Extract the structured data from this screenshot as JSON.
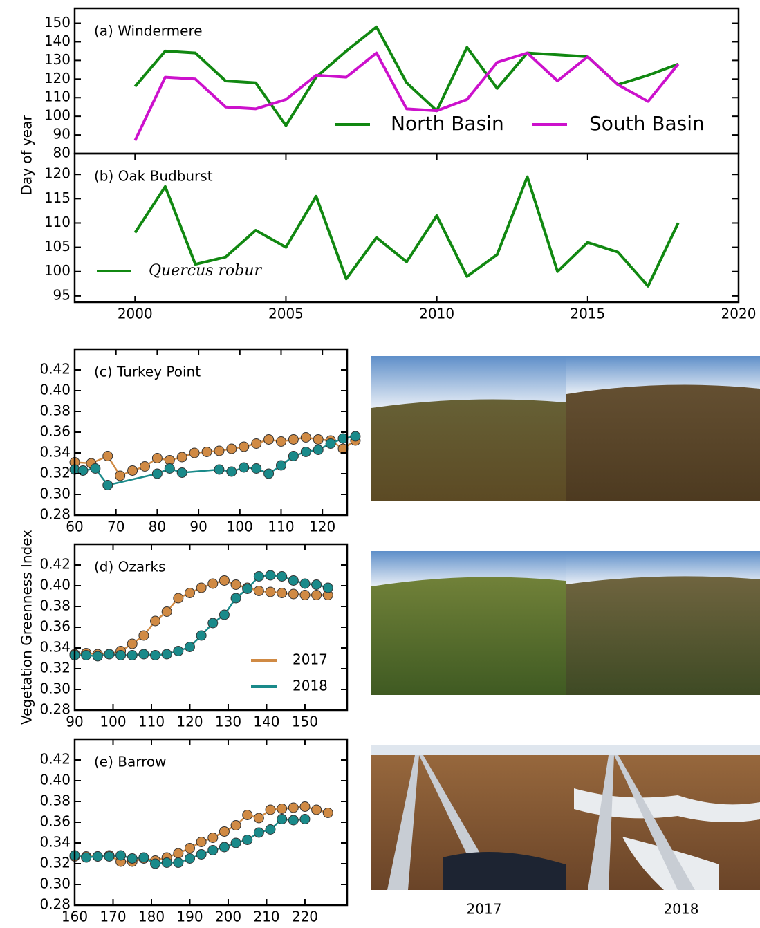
{
  "chart_data": [
    {
      "type": "line",
      "title": "(a) Windermere",
      "ylabel": "Day of year",
      "x": [
        2000,
        2001,
        2002,
        2003,
        2004,
        2005,
        2006,
        2007,
        2008,
        2009,
        2010,
        2011,
        2012,
        2013,
        2014,
        2015,
        2016,
        2017,
        2018
      ],
      "series": [
        {
          "name": "North Basin",
          "color": "#118811",
          "values": [
            116,
            135,
            134,
            119,
            118,
            95,
            121,
            135,
            148,
            118,
            103,
            137,
            115,
            134,
            133,
            132,
            117,
            122,
            128
          ]
        },
        {
          "name": "South Basin",
          "color": "#cc11cc",
          "values": [
            87,
            121,
            120,
            105,
            104,
            109,
            122,
            121,
            134,
            104,
            103,
            109,
            129,
            134,
            119,
            132,
            117,
            108,
            128
          ]
        }
      ],
      "xlim": [
        1998,
        2020
      ],
      "ylim": [
        80,
        158
      ],
      "yticks": [
        80,
        90,
        100,
        110,
        120,
        130,
        140,
        150
      ],
      "legend": "lower right"
    },
    {
      "type": "line",
      "title": "(b) Oak Budburst",
      "x": [
        2000,
        2001,
        2002,
        2003,
        2004,
        2005,
        2006,
        2007,
        2008,
        2009,
        2010,
        2011,
        2012,
        2013,
        2014,
        2015,
        2016,
        2017,
        2018
      ],
      "series": [
        {
          "name": "Quercus robur",
          "color": "#118811",
          "values": [
            108,
            117.5,
            101.5,
            103,
            108.5,
            105,
            115.5,
            98.5,
            107,
            102,
            111.5,
            99,
            103.5,
            119.5,
            100,
            106,
            104,
            97,
            110
          ]
        }
      ],
      "xlim": [
        1998,
        2020
      ],
      "xticks": [
        2000,
        2005,
        2010,
        2015,
        2020
      ],
      "ylim": [
        93.7,
        124.3
      ],
      "yticks": [
        95,
        100,
        105,
        110,
        115,
        120
      ],
      "legend": "lower left"
    },
    {
      "type": "scatter",
      "title": "(c) Turkey Point",
      "series": [
        {
          "name": "2017",
          "color": "#d08a44",
          "x": [
            60,
            64,
            68,
            71,
            74,
            77,
            80,
            83,
            86,
            89,
            92,
            95,
            98,
            101,
            104,
            107,
            110,
            113,
            116,
            119,
            122,
            125,
            128
          ],
          "values": [
            0.331,
            0.33,
            0.337,
            0.318,
            0.323,
            0.327,
            0.335,
            0.333,
            0.336,
            0.34,
            0.341,
            0.342,
            0.344,
            0.346,
            0.349,
            0.353,
            0.351,
            0.353,
            0.355,
            0.353,
            0.352,
            0.344,
            0.352
          ]
        },
        {
          "name": "2018",
          "color": "#1a8a8a",
          "x": [
            60,
            62,
            65,
            68,
            80,
            83,
            86,
            95,
            98,
            101,
            104,
            107,
            110,
            113,
            116,
            119,
            122,
            125,
            128
          ],
          "values": [
            0.324,
            0.323,
            0.325,
            0.309,
            0.32,
            0.325,
            0.321,
            0.324,
            0.322,
            0.326,
            0.325,
            0.32,
            0.328,
            0.337,
            0.341,
            0.343,
            0.349,
            0.354,
            0.356
          ]
        }
      ],
      "xlim": [
        60,
        126
      ],
      "xticks": [
        60,
        70,
        80,
        90,
        100,
        110,
        120
      ],
      "ylim": [
        0.28,
        0.44
      ],
      "yticks": [
        0.28,
        {
          "value": 0.3,
          "label": "0.30"
        },
        0.32,
        0.34,
        0.36,
        0.38,
        {
          "value": 0.4,
          "label": "0.40"
        },
        0.42
      ]
    },
    {
      "type": "scatter",
      "title": "(d) Ozarks",
      "ylabel": "Vegetation Greenness Index",
      "series": [
        {
          "name": "2017",
          "color": "#d08a44",
          "x": [
            90,
            93,
            96,
            99,
            102,
            105,
            108,
            111,
            114,
            117,
            120,
            123,
            126,
            129,
            132,
            135,
            138,
            141,
            144,
            147,
            150,
            153,
            156
          ],
          "values": [
            0.334,
            0.335,
            0.334,
            0.334,
            0.337,
            0.344,
            0.352,
            0.366,
            0.375,
            0.388,
            0.393,
            0.398,
            0.402,
            0.405,
            0.401,
            0.398,
            0.395,
            0.394,
            0.393,
            0.392,
            0.391,
            0.391,
            0.391
          ]
        },
        {
          "name": "2018",
          "color": "#1a8a8a",
          "x": [
            90,
            93,
            96,
            99,
            102,
            105,
            108,
            111,
            114,
            117,
            120,
            123,
            126,
            129,
            132,
            135,
            138,
            141,
            144,
            147,
            150,
            153,
            156
          ],
          "values": [
            0.333,
            0.333,
            0.332,
            0.334,
            0.333,
            0.333,
            0.334,
            0.333,
            0.334,
            0.337,
            0.341,
            0.352,
            0.364,
            0.372,
            0.388,
            0.397,
            0.409,
            0.41,
            0.409,
            0.405,
            0.402,
            0.401,
            0.398
          ]
        }
      ],
      "xlim": [
        90,
        161
      ],
      "xticks": [
        90,
        100,
        110,
        120,
        130,
        140,
        150
      ],
      "ylim": [
        0.28,
        0.44
      ],
      "yticks": [
        0.28,
        {
          "value": 0.3,
          "label": "0.30"
        },
        0.32,
        0.34,
        0.36,
        0.38,
        {
          "value": 0.4,
          "label": "0.40"
        },
        0.42
      ],
      "legend": "lower right"
    },
    {
      "type": "scatter",
      "title": "(e) Barrow",
      "series": [
        {
          "name": "2017",
          "color": "#d08a44",
          "x": [
            160,
            163,
            166,
            169,
            172,
            175,
            178,
            181,
            184,
            187,
            190,
            193,
            196,
            199,
            202,
            205,
            208,
            211,
            214,
            217,
            220,
            223,
            226
          ],
          "values": [
            0.327,
            0.327,
            0.327,
            0.328,
            0.322,
            0.322,
            0.325,
            0.323,
            0.326,
            0.33,
            0.335,
            0.341,
            0.345,
            0.351,
            0.357,
            0.367,
            0.364,
            0.372,
            0.373,
            0.374,
            0.375,
            0.372,
            0.369
          ]
        },
        {
          "name": "2018",
          "color": "#1a8a8a",
          "x": [
            160,
            163,
            166,
            169,
            172,
            175,
            178,
            181,
            184,
            187,
            190,
            193,
            196,
            199,
            202,
            205,
            208,
            211,
            214,
            217,
            220
          ],
          "values": [
            0.328,
            0.326,
            0.327,
            0.327,
            0.328,
            0.325,
            0.326,
            0.32,
            0.321,
            0.321,
            0.325,
            0.329,
            0.333,
            0.336,
            0.34,
            0.343,
            0.35,
            0.353,
            0.363,
            0.362,
            0.363
          ]
        }
      ],
      "xlim": [
        160,
        231
      ],
      "xticks": [
        160,
        170,
        180,
        190,
        200,
        210,
        220
      ],
      "ylim": [
        0.28,
        0.44
      ],
      "yticks": [
        0.28,
        {
          "value": 0.3,
          "label": "0.30"
        },
        0.32,
        0.34,
        0.36,
        0.38,
        {
          "value": 0.4,
          "label": "0.40"
        },
        0.42
      ]
    }
  ],
  "photos": {
    "captions": [
      "2017",
      "2018"
    ]
  }
}
